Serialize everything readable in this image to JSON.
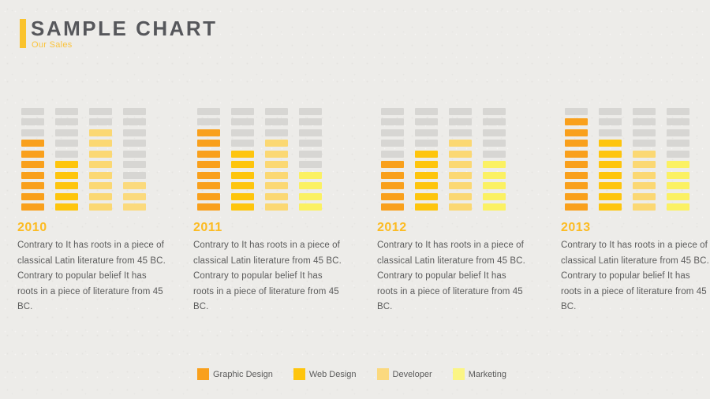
{
  "header": {
    "title": "SAMPLE CHART",
    "subtitle": "Our Sales",
    "accent_color": "#FAC32D"
  },
  "chart_data": {
    "type": "bar",
    "title": "SAMPLE CHART",
    "subtitle": "Our Sales",
    "ylim": [
      0,
      10
    ],
    "segments_per_column": 10,
    "empty_color": "#D7D6D3",
    "grid": false,
    "legend_position": "bottom",
    "legend": [
      {
        "label": "Graphic Design",
        "color": "#F9A01C"
      },
      {
        "label": "Web Design",
        "color": "#FEC50D"
      },
      {
        "label": "Developer",
        "color": "#FBD97E"
      },
      {
        "label": "Marketing",
        "color": "#FBF584"
      }
    ],
    "groups": [
      {
        "year": "2010",
        "description": "Contrary to It has roots in a piece of classical Latin literature from 45 BC. Contrary to popular belief It has roots in a piece of literature from 45 BC.",
        "columns": [
          {
            "series": "Graphic Design",
            "filled": 7,
            "color": "#F9A01C"
          },
          {
            "series": "Web Design",
            "filled": 5,
            "color": "#FEC50D"
          },
          {
            "series": "Developer",
            "filled": 8,
            "color": "#FBD873"
          },
          {
            "series": "Marketing",
            "filled": 3,
            "color": "#FBDA7D"
          }
        ]
      },
      {
        "year": "2011",
        "description": "Contrary to It has roots in a piece of classical Latin literature from 45 BC. Contrary to popular belief It has roots in a piece of literature from 45 BC.",
        "columns": [
          {
            "series": "Graphic Design",
            "filled": 8,
            "color": "#F9A01C"
          },
          {
            "series": "Web Design",
            "filled": 6,
            "color": "#FEC50D"
          },
          {
            "series": "Developer",
            "filled": 7,
            "color": "#FBD873"
          },
          {
            "series": "Marketing",
            "filled": 4,
            "color": "#FBF163"
          }
        ]
      },
      {
        "year": "2012",
        "description": "Contrary to It has roots in a piece of classical Latin literature from 45 BC. Contrary to popular belief It has roots in a piece of literature from 45 BC.",
        "columns": [
          {
            "series": "Graphic Design",
            "filled": 5,
            "color": "#F9A01C"
          },
          {
            "series": "Web Design",
            "filled": 6,
            "color": "#FEC50D"
          },
          {
            "series": "Developer",
            "filled": 7,
            "color": "#FBD873"
          },
          {
            "series": "Marketing",
            "filled": 5,
            "color": "#FBF163"
          }
        ]
      },
      {
        "year": "2013",
        "description": "Contrary to It has roots in a piece of classical Latin literature from 45 BC. Contrary to popular belief It has roots in a piece of literature from 45 BC.",
        "columns": [
          {
            "series": "Graphic Design",
            "filled": 9,
            "color": "#F9A01C"
          },
          {
            "series": "Web Design",
            "filled": 7,
            "color": "#FEC50D"
          },
          {
            "series": "Developer",
            "filled": 6,
            "color": "#FBD873"
          },
          {
            "series": "Marketing",
            "filled": 5,
            "color": "#FBF163"
          }
        ]
      }
    ]
  }
}
